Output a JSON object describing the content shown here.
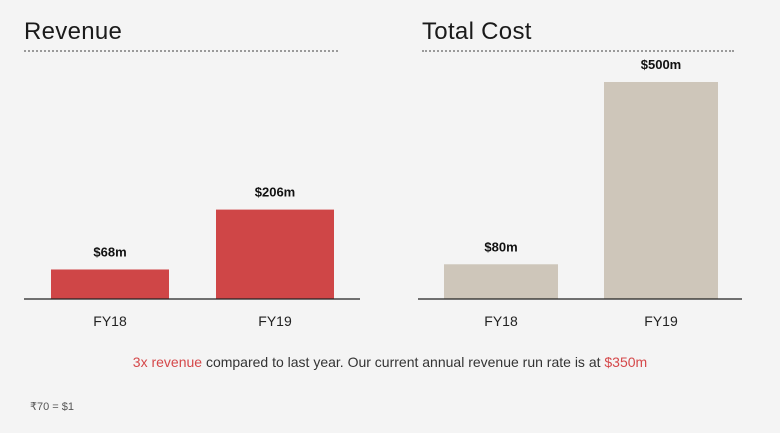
{
  "chart_data": [
    {
      "type": "bar",
      "title": "Revenue",
      "categories": [
        "FY18",
        "FY19"
      ],
      "values": [
        68,
        206
      ],
      "value_labels": [
        "$68m",
        "$206m"
      ],
      "unit": "$m",
      "ylim": [
        0,
        500
      ],
      "grid": false,
      "bar_color": "#cf4647"
    },
    {
      "type": "bar",
      "title": "Total Cost",
      "categories": [
        "FY18",
        "FY19"
      ],
      "values": [
        80,
        500
      ],
      "value_labels": [
        "$80m",
        "$500m"
      ],
      "unit": "$m",
      "ylim": [
        0,
        500
      ],
      "grid": false,
      "bar_color": "#cec6ba"
    }
  ],
  "summary": {
    "highlight_1": "3x revenue",
    "text_1": " compared to last year. Our current annual revenue run rate is at ",
    "highlight_2": "$350m",
    "highlight_color": "#d5484a"
  },
  "footnote": "₹70 = $1"
}
